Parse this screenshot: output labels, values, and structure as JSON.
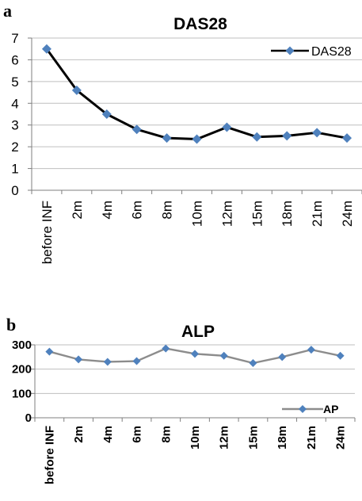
{
  "chart_data": [
    {
      "panel_label": "a",
      "type": "line",
      "title": "DAS28",
      "categories": [
        "before INF",
        "2m",
        "4m",
        "6m",
        "8m",
        "10m",
        "12m",
        "15m",
        "18m",
        "21m",
        "24m"
      ],
      "series": [
        {
          "name": "DAS28",
          "values": [
            6.5,
            4.6,
            3.5,
            2.8,
            2.4,
            2.35,
            2.9,
            2.45,
            2.5,
            2.65,
            2.4
          ]
        }
      ],
      "ylim": [
        0,
        7
      ],
      "yticks": [
        0,
        1,
        2,
        3,
        4,
        5,
        6,
        7
      ],
      "grid": true,
      "legend_position": "top-right",
      "line_color": "#000000",
      "marker_color": "#4f81bd",
      "grid_color": "#bfbfbf",
      "xlabel": "",
      "ylabel": ""
    },
    {
      "panel_label": "b",
      "type": "line",
      "title": "ALP",
      "categories": [
        "before INF",
        "2m",
        "4m",
        "6m",
        "8m",
        "10m",
        "12m",
        "15m",
        "18m",
        "21m",
        "24m"
      ],
      "series": [
        {
          "name": "AP",
          "values": [
            272,
            240,
            230,
            233,
            285,
            263,
            255,
            225,
            250,
            280,
            255
          ]
        }
      ],
      "ylim": [
        0,
        300
      ],
      "yticks": [
        0,
        100,
        200,
        300
      ],
      "grid": true,
      "legend_position": "bottom-right",
      "line_color": "#8c8c8c",
      "marker_color": "#4f81bd",
      "grid_color": "#bfbfbf",
      "xlabel": "",
      "ylabel": ""
    }
  ]
}
